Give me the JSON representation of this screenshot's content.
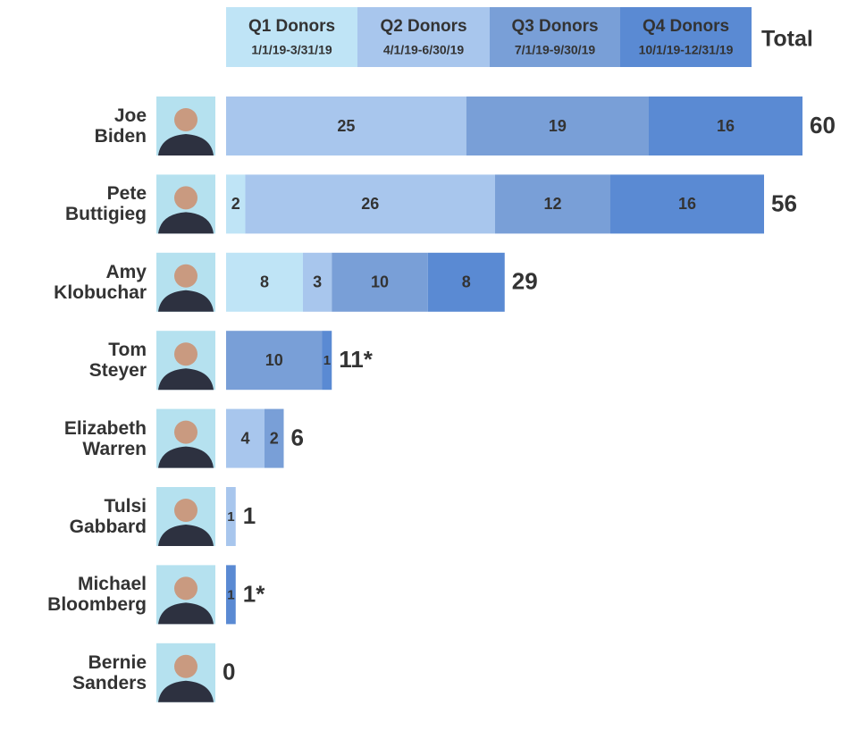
{
  "chart_data": {
    "type": "stacked-bar",
    "categories": [
      "Joe Biden",
      "Pete Buttigieg",
      "Amy Klobuchar",
      "Tom Steyer",
      "Elizabeth Warren",
      "Tulsi Gabbard",
      "Michael Bloomberg",
      "Bernie Sanders"
    ],
    "series": [
      {
        "name": "Q1 Donors",
        "period": "1/1/19-3/31/19",
        "color": "#bfe4f6",
        "values": [
          0,
          2,
          8,
          0,
          0,
          0,
          0,
          0
        ]
      },
      {
        "name": "Q2 Donors",
        "period": "4/1/19-6/30/19",
        "color": "#a8c6ed",
        "values": [
          25,
          26,
          3,
          0,
          4,
          1,
          0,
          0
        ]
      },
      {
        "name": "Q3 Donors",
        "period": "7/1/19-9/30/19",
        "color": "#799fd7",
        "values": [
          19,
          12,
          10,
          10,
          2,
          0,
          0,
          0
        ]
      },
      {
        "name": "Q4 Donors",
        "period": "10/1/19-12/31/19",
        "color": "#5a8ad3",
        "values": [
          16,
          16,
          8,
          1,
          0,
          0,
          1,
          0
        ]
      }
    ],
    "total_title": "Total",
    "totals": [
      60,
      56,
      29,
      11,
      6,
      1,
      1,
      0
    ],
    "total_labels": [
      "60",
      "56",
      "29",
      "11*",
      "6",
      "1",
      "1*",
      "0"
    ]
  }
}
